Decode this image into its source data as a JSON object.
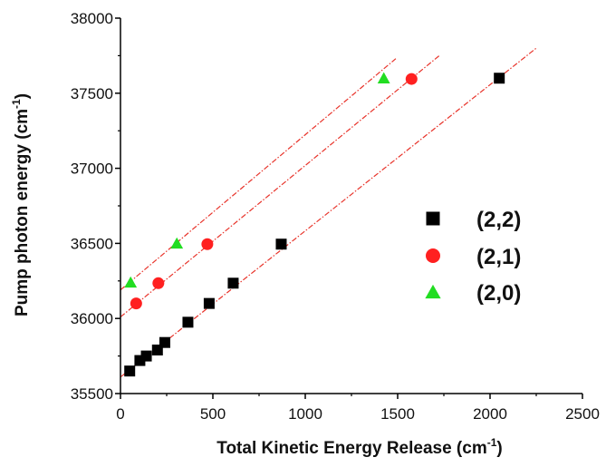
{
  "chart_data": {
    "type": "scatter",
    "xlabel": "Total Kinetic Energy Release (cm",
    "xlabel_sup": "-1",
    "xlabel_end": ")",
    "ylabel": "Pump photon energy (cm",
    "ylabel_sup": "-1",
    "ylabel_end": ")",
    "xlim": [
      0,
      2500
    ],
    "ylim": [
      35500,
      38000
    ],
    "x_ticks": [
      0,
      500,
      1000,
      1500,
      2000,
      2500
    ],
    "y_ticks": [
      35500,
      36000,
      36500,
      37000,
      37500,
      38000
    ],
    "legend_position": "right",
    "series": [
      {
        "name": "(2,2)",
        "marker": "square",
        "color": "#000000",
        "x": [
          50,
          105,
          140,
          200,
          240,
          365,
          480,
          610,
          870,
          2050
        ],
        "y": [
          35650,
          35720,
          35750,
          35790,
          35840,
          35975,
          36100,
          36235,
          36495,
          37600
        ],
        "fit": {
          "x": [
            0,
            2250
          ],
          "y": [
            35610,
            37800
          ],
          "color": "#e8332a"
        }
      },
      {
        "name": "(2,1)",
        "marker": "circle",
        "color": "#ff2020",
        "x": [
          85,
          205,
          470,
          1575
        ],
        "y": [
          36100,
          36235,
          36495,
          37595
        ],
        "fit": {
          "x": [
            0,
            1725
          ],
          "y": [
            36010,
            37750
          ],
          "color": "#e8332a"
        }
      },
      {
        "name": "(2,0)",
        "marker": "triangle",
        "color": "#22dd22",
        "x": [
          55,
          305,
          1425
        ],
        "y": [
          36240,
          36500,
          37600
        ],
        "fit": {
          "x": [
            0,
            1490
          ],
          "y": [
            36190,
            37730
          ],
          "color": "#e8332a"
        }
      }
    ]
  }
}
